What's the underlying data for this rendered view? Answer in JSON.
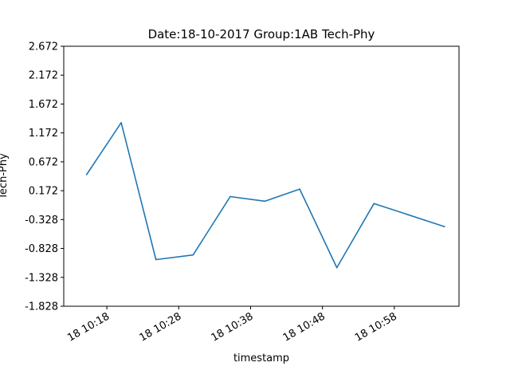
{
  "chart_data": {
    "type": "line",
    "title": "Date:18-10-2017 Group:1AB Tech-Phy",
    "xlabel": "timestamp",
    "ylabel": "Tech-Phy",
    "line_color": "#1f77b4",
    "ylim": [
      -1.828,
      2.672
    ],
    "xlim": [
      "2017-10-18 10:12",
      "2017-10-18 11:07"
    ],
    "y_ticks": [
      "-1.828",
      "-1.328",
      "-0.828",
      "-0.328",
      "0.172",
      "0.672",
      "1.172",
      "1.672",
      "2.172",
      "2.672"
    ],
    "x_ticks": [
      {
        "value": "2017-10-18 10:18",
        "label": "18 10:18"
      },
      {
        "value": "2017-10-18 10:28",
        "label": "18 10:28"
      },
      {
        "value": "2017-10-18 10:38",
        "label": "18 10:38"
      },
      {
        "value": "2017-10-18 10:48",
        "label": "18 10:48"
      },
      {
        "value": "2017-10-18 10:58",
        "label": "18 10:58"
      }
    ],
    "series": [
      {
        "x": [
          "2017-10-18 10:15:10",
          "2017-10-18 10:20:00",
          "2017-10-18 10:24:50",
          "2017-10-18 10:30:00",
          "2017-10-18 10:35:10",
          "2017-10-18 10:40:00",
          "2017-10-18 10:44:50",
          "2017-10-18 10:50:00",
          "2017-10-18 10:55:10",
          "2017-10-18 11:05:00"
        ],
        "y": [
          0.45,
          1.35,
          -1.02,
          -0.94,
          0.07,
          -0.01,
          0.2,
          -1.16,
          -0.05,
          -0.45
        ]
      }
    ]
  }
}
